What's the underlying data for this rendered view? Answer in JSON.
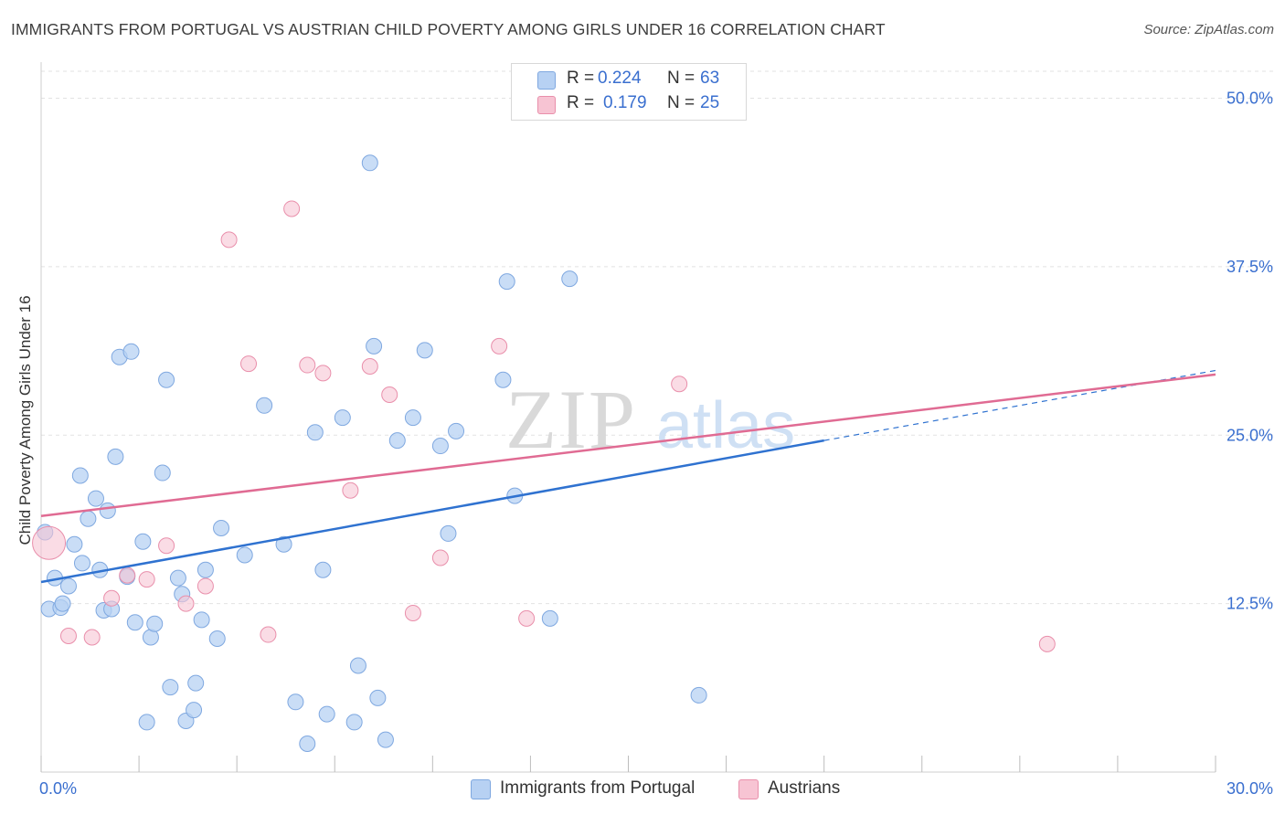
{
  "title": "IMMIGRANTS FROM PORTUGAL VS AUSTRIAN CHILD POVERTY AMONG GIRLS UNDER 16 CORRELATION CHART",
  "source": "Source: ZipAtlas.com",
  "watermark": {
    "zip": "ZIP",
    "atlas": "atlas"
  },
  "legend_top": {
    "rows": [
      {
        "r_label": "R =",
        "r_value": "0.224",
        "n_label": "N =",
        "n_value": "63"
      },
      {
        "r_label": "R =",
        "r_value": "0.179",
        "n_label": "N =",
        "n_value": "25"
      }
    ]
  },
  "legend_bottom": {
    "series1": "Immigrants from Portugal",
    "series2": "Austrians"
  },
  "colors": {
    "blue_fill": "#b7d1f3",
    "blue_stroke": "#7fa8e0",
    "blue_line": "#2f72d0",
    "pink_fill": "#f7c4d3",
    "pink_stroke": "#e98fab",
    "pink_line": "#e06b93",
    "tick_label": "#3a6fcf",
    "grid": "#e2e2e2"
  },
  "chart_data": {
    "type": "scatter",
    "title": "IMMIGRANTS FROM PORTUGAL VS AUSTRIAN CHILD POVERTY AMONG GIRLS UNDER 16 CORRELATION CHART",
    "xlabel": "",
    "ylabel": "Child Poverty Among Girls Under 16",
    "xlim": [
      0,
      30
    ],
    "ylim": [
      0,
      50
    ],
    "x_tick_labels": [
      "0.0%",
      "30.0%"
    ],
    "y_ticks": [
      12.5,
      25.0,
      37.5,
      50.0
    ],
    "y_tick_labels": [
      "12.5%",
      "25.0%",
      "37.5%",
      "50.0%"
    ],
    "grid": true,
    "legend_position": "top-center",
    "series": [
      {
        "name": "Immigrants from Portugal",
        "R": 0.224,
        "N": 63,
        "trend": {
          "x0": 0.0,
          "y0": 14.1,
          "x1": 20.0,
          "y1": 24.6,
          "dash_to_x": 30.0,
          "dash_to_y": 29.8
        },
        "points": [
          [
            0.1,
            17.8
          ],
          [
            0.2,
            12.1
          ],
          [
            0.35,
            14.4
          ],
          [
            0.5,
            12.2
          ],
          [
            0.55,
            12.5
          ],
          [
            0.7,
            13.8
          ],
          [
            0.85,
            16.9
          ],
          [
            1.0,
            22.0
          ],
          [
            1.05,
            15.5
          ],
          [
            1.2,
            18.8
          ],
          [
            1.4,
            20.3
          ],
          [
            1.5,
            15.0
          ],
          [
            1.6,
            12.0
          ],
          [
            1.7,
            19.4
          ],
          [
            1.8,
            12.1
          ],
          [
            1.9,
            23.4
          ],
          [
            2.0,
            30.8
          ],
          [
            2.2,
            14.5
          ],
          [
            2.3,
            31.2
          ],
          [
            2.4,
            11.1
          ],
          [
            2.6,
            17.1
          ],
          [
            2.7,
            3.7
          ],
          [
            2.8,
            10.0
          ],
          [
            2.9,
            11.0
          ],
          [
            3.1,
            22.2
          ],
          [
            3.2,
            29.1
          ],
          [
            3.3,
            6.3
          ],
          [
            3.5,
            14.4
          ],
          [
            3.6,
            13.2
          ],
          [
            3.7,
            3.8
          ],
          [
            3.9,
            4.6
          ],
          [
            3.95,
            6.6
          ],
          [
            4.1,
            11.3
          ],
          [
            4.2,
            15.0
          ],
          [
            4.5,
            9.9
          ],
          [
            4.6,
            18.1
          ],
          [
            5.2,
            16.1
          ],
          [
            5.7,
            27.2
          ],
          [
            6.2,
            16.9
          ],
          [
            6.5,
            5.2
          ],
          [
            6.8,
            2.1
          ],
          [
            7.0,
            25.2
          ],
          [
            7.2,
            15.0
          ],
          [
            7.3,
            4.3
          ],
          [
            7.7,
            26.3
          ],
          [
            8.0,
            3.7
          ],
          [
            8.1,
            7.9
          ],
          [
            8.4,
            45.2
          ],
          [
            8.5,
            31.6
          ],
          [
            8.6,
            5.5
          ],
          [
            8.8,
            2.4
          ],
          [
            9.1,
            24.6
          ],
          [
            9.5,
            26.3
          ],
          [
            9.8,
            31.3
          ],
          [
            10.2,
            24.2
          ],
          [
            10.4,
            17.7
          ],
          [
            10.6,
            25.3
          ],
          [
            11.8,
            29.1
          ],
          [
            11.9,
            36.4
          ],
          [
            12.1,
            20.5
          ],
          [
            13.0,
            11.4
          ],
          [
            13.5,
            36.6
          ],
          [
            16.8,
            5.7
          ]
        ]
      },
      {
        "name": "Austrians",
        "R": 0.179,
        "N": 25,
        "trend": {
          "x0": 0.0,
          "y0": 19.0,
          "x1": 30.0,
          "y1": 29.5
        },
        "points": [
          [
            0.2,
            17.0
          ],
          [
            0.7,
            10.1
          ],
          [
            1.3,
            10.0
          ],
          [
            1.8,
            12.9
          ],
          [
            2.2,
            14.6
          ],
          [
            2.7,
            14.3
          ],
          [
            3.2,
            16.8
          ],
          [
            3.7,
            12.5
          ],
          [
            4.2,
            13.8
          ],
          [
            4.8,
            39.5
          ],
          [
            5.3,
            30.3
          ],
          [
            5.8,
            10.2
          ],
          [
            6.4,
            41.8
          ],
          [
            6.8,
            30.2
          ],
          [
            7.2,
            29.6
          ],
          [
            7.9,
            20.9
          ],
          [
            8.4,
            30.1
          ],
          [
            8.9,
            28.0
          ],
          [
            9.5,
            11.8
          ],
          [
            10.2,
            15.9
          ],
          [
            11.7,
            31.6
          ],
          [
            12.4,
            11.4
          ],
          [
            13.5,
            49.9
          ],
          [
            16.3,
            28.8
          ],
          [
            25.7,
            9.5
          ]
        ]
      }
    ]
  }
}
